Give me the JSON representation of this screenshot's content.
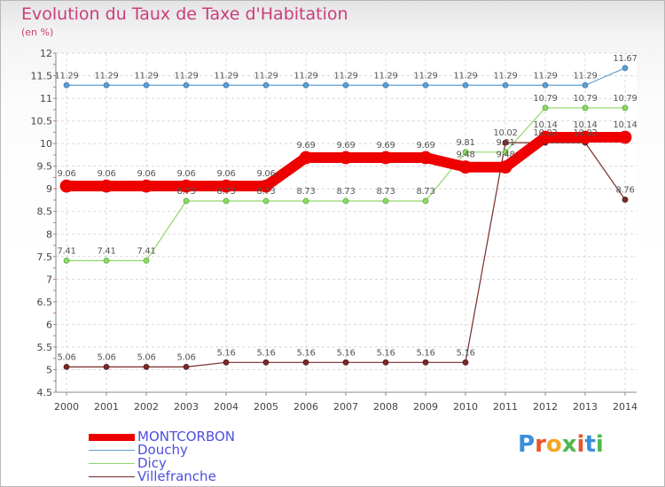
{
  "title": "Evolution du Taux de Taxe d'Habitation",
  "unit_label": "(en %)",
  "logo": {
    "text": "Proxiti",
    "letter_colors": [
      "#3a8fd8",
      "#e8562c",
      "#f5a623",
      "#4fb84f",
      "#e8562c",
      "#3a8fd8",
      "#4fb84f"
    ]
  },
  "chart_data": {
    "type": "line",
    "title": "Evolution du Taux de Taxe d'Habitation",
    "ylabel": "(en %)",
    "xlabel": "",
    "x": [
      "2000",
      "2001",
      "2002",
      "2003",
      "2004",
      "2005",
      "2006",
      "2007",
      "2008",
      "2009",
      "2010",
      "2011",
      "2012",
      "2013",
      "2014"
    ],
    "ylim": [
      4.5,
      12
    ],
    "yticks": [
      "4.5",
      "5",
      "5.5",
      "6",
      "6.5",
      "7",
      "7.5",
      "8",
      "8.5",
      "9",
      "9.5",
      "10",
      "10.5",
      "11",
      "11.5",
      "12"
    ],
    "grid": true,
    "legend_position": "bottom-left",
    "series": [
      {
        "name": "MONTCORBON",
        "color": "#ee0000",
        "values": [
          9.06,
          9.06,
          9.06,
          9.06,
          9.06,
          9.06,
          9.69,
          9.69,
          9.69,
          9.69,
          9.48,
          9.48,
          10.14,
          10.14,
          10.14
        ],
        "labels": [
          "9.06",
          "9.06",
          "9.06",
          "9.06",
          "9.06",
          "9.06",
          "9.69",
          "9.69",
          "9.69",
          "9.69",
          "9.48",
          "9.48",
          "10.14",
          "10.14",
          "10.14"
        ]
      },
      {
        "name": "Douchy",
        "color": "#5d9fd0",
        "values": [
          11.29,
          11.29,
          11.29,
          11.29,
          11.29,
          11.29,
          11.29,
          11.29,
          11.29,
          11.29,
          11.29,
          11.29,
          11.29,
          11.29,
          11.67
        ],
        "labels": [
          "11.29",
          "11.29",
          "11.29",
          "11.29",
          "11.29",
          "11.29",
          "11.29",
          "11.29",
          "11.29",
          "11.29",
          "11.29",
          "11.29",
          "11.29",
          "11.29",
          "11.67"
        ]
      },
      {
        "name": "Dicy",
        "color": "#8fd86a",
        "values": [
          7.41,
          7.41,
          7.41,
          8.73,
          8.73,
          8.73,
          8.73,
          8.73,
          8.73,
          8.73,
          9.81,
          9.81,
          10.79,
          10.79,
          10.79
        ],
        "labels": [
          "7.41",
          "7.41",
          "7.41",
          "8.73",
          "8.73",
          "8.73",
          "8.73",
          "8.73",
          "8.73",
          "8.73",
          "9.81",
          "9.81",
          "10.79",
          "10.79",
          "10.79"
        ]
      },
      {
        "name": "Villefranche",
        "color": "#7a2a2a",
        "values": [
          5.06,
          5.06,
          5.06,
          5.06,
          5.16,
          5.16,
          5.16,
          5.16,
          5.16,
          5.16,
          5.16,
          10.02,
          10.02,
          10.02,
          8.76
        ],
        "labels": [
          "5.06",
          "5.06",
          "5.06",
          "5.06",
          "5.16",
          "5.16",
          "5.16",
          "5.16",
          "5.16",
          "5.16",
          "5.16",
          "10.02",
          "10.02",
          "10.02",
          "8.76"
        ]
      }
    ]
  }
}
